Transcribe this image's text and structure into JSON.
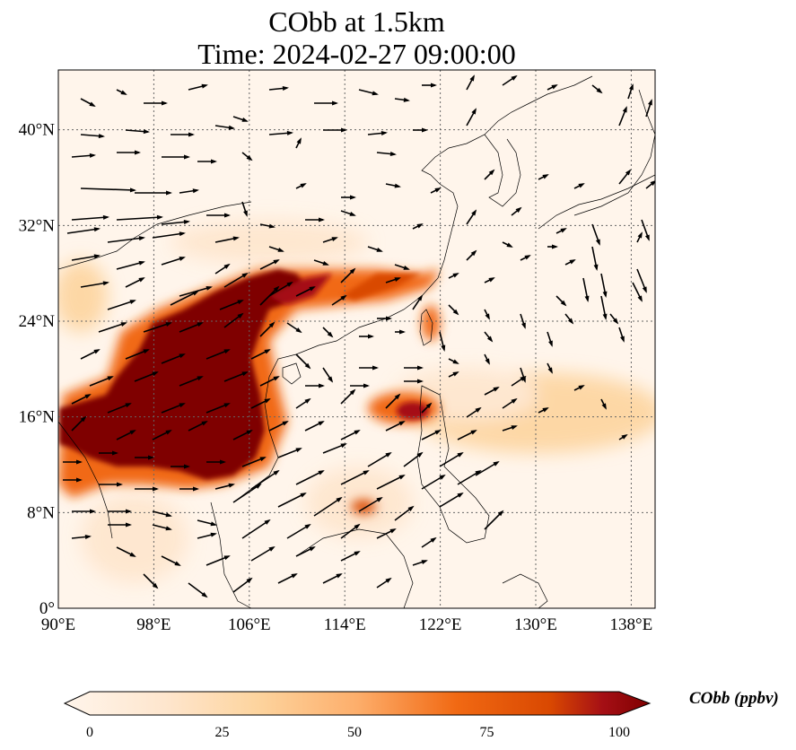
{
  "title": {
    "line1": "CObb at 1.5km",
    "line2": "Time: 2024-02-27 09:00:00"
  },
  "map": {
    "lon_range": [
      90,
      140
    ],
    "lat_range": [
      0,
      45
    ],
    "lon_ticks": [
      {
        "value": 90,
        "label": "90°E"
      },
      {
        "value": 98,
        "label": "98°E"
      },
      {
        "value": 106,
        "label": "106°E"
      },
      {
        "value": 114,
        "label": "114°E"
      },
      {
        "value": 122,
        "label": "122°E"
      },
      {
        "value": 130,
        "label": "130°E"
      },
      {
        "value": 138,
        "label": "138°E"
      }
    ],
    "lat_ticks": [
      {
        "value": 0,
        "label": "0°"
      },
      {
        "value": 8,
        "label": "8°N"
      },
      {
        "value": 16,
        "label": "16°N"
      },
      {
        "value": 24,
        "label": "24°N"
      },
      {
        "value": 32,
        "label": "32°N"
      },
      {
        "value": 40,
        "label": "40°N"
      }
    ],
    "grid": true
  },
  "colorbar": {
    "label": "CObb (ppbv)",
    "min": 0,
    "max": 100,
    "ticks": [
      {
        "value": 0,
        "label": "0"
      },
      {
        "value": 25,
        "label": "25"
      },
      {
        "value": 50,
        "label": "50"
      },
      {
        "value": 75,
        "label": "75"
      },
      {
        "value": 100,
        "label": "100"
      }
    ],
    "colors": [
      "#fff5eb",
      "#fdd49e",
      "#fdae6b",
      "#f16913",
      "#d94801",
      "#a50f15",
      "#7f0000"
    ]
  }
}
